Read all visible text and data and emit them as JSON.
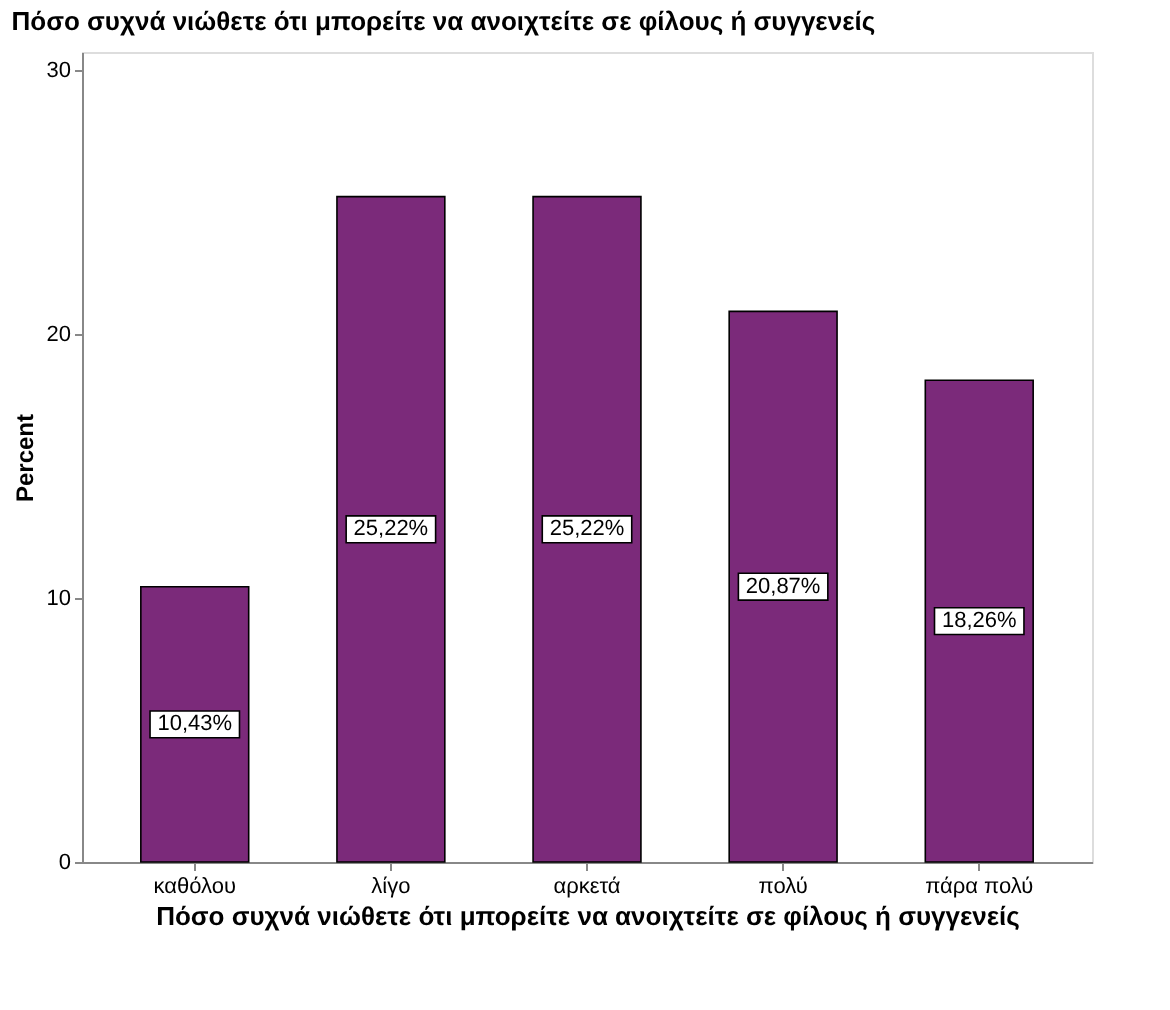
{
  "chart_data": {
    "type": "bar",
    "title": "Πόσο συχνά νιώθετε ότι μπορείτε να ανοιχτείτε σε φίλους ή συγγενείς",
    "xlabel": "Πόσο συχνά νιώθετε ότι μπορείτε να ανοιχτείτε σε φίλους ή συγγενείς",
    "ylabel": "Percent",
    "categories": [
      "καθόλου",
      "λίγο",
      "αρκετά",
      "πολύ",
      "πάρα πολύ"
    ],
    "values": [
      10.43,
      25.22,
      25.22,
      20.87,
      18.26
    ],
    "value_labels": [
      "10,43%",
      "25,22%",
      "25,22%",
      "20,87%",
      "18,26%"
    ],
    "color": "#7b2a7a",
    "ylim": [
      0,
      30.7
    ],
    "yticks": [
      0,
      10,
      20,
      30
    ],
    "grid": false
  }
}
